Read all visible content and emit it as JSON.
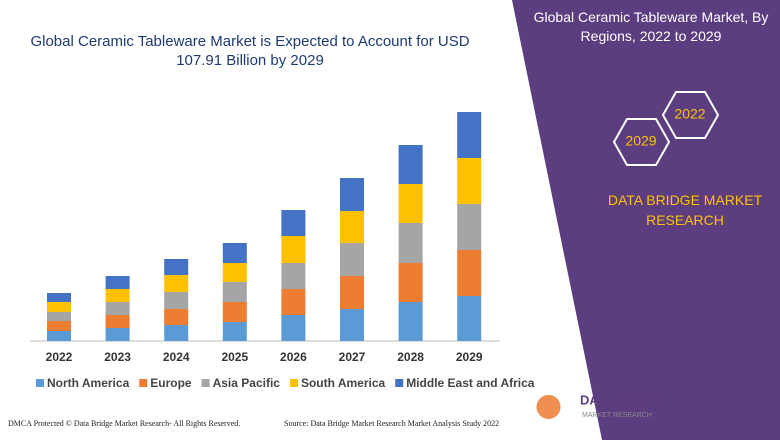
{
  "chart_data": {
    "type": "bar",
    "stacked": true,
    "title": "Global Ceramic Tableware Market is Expected to Account for USD 107.91 Billion by 2029",
    "categories": [
      "2022",
      "2023",
      "2024",
      "2025",
      "2026",
      "2027",
      "2028",
      "2029"
    ],
    "series": [
      {
        "name": "North America",
        "color": "#5b9bd5",
        "values": [
          10,
          13,
          16,
          19,
          26,
          32,
          39,
          45
        ]
      },
      {
        "name": "Europe",
        "color": "#ed7d31",
        "values": [
          10,
          13,
          16,
          20,
          26,
          33,
          39,
          46
        ]
      },
      {
        "name": "Asia Pacific",
        "color": "#a5a5a5",
        "values": [
          9,
          13,
          17,
          20,
          26,
          33,
          40,
          46
        ]
      },
      {
        "name": "South America",
        "color": "#ffc000",
        "values": [
          10,
          13,
          17,
          19,
          27,
          32,
          39,
          46
        ]
      },
      {
        "name": "Middle East and Africa",
        "color": "#4472c4",
        "values": [
          9,
          13,
          16,
          20,
          26,
          33,
          39,
          46
        ]
      }
    ]
  },
  "panel": {
    "title": "Global Ceramic Tableware Market, By Regions, 2022 to 2029",
    "hex_labels": [
      "2022",
      "2029"
    ],
    "brand": "DATA BRIDGE MARKET RESEARCH"
  },
  "logo": {
    "name": "DATA BRIDGE",
    "tagline": "MARKET RESEARCH"
  },
  "footer": {
    "left": "DMCA Protected © Data Bridge Market Research- All Rights Reserved.",
    "right": "Source: Data Bridge Market Research Market Analysis Study 2022"
  }
}
